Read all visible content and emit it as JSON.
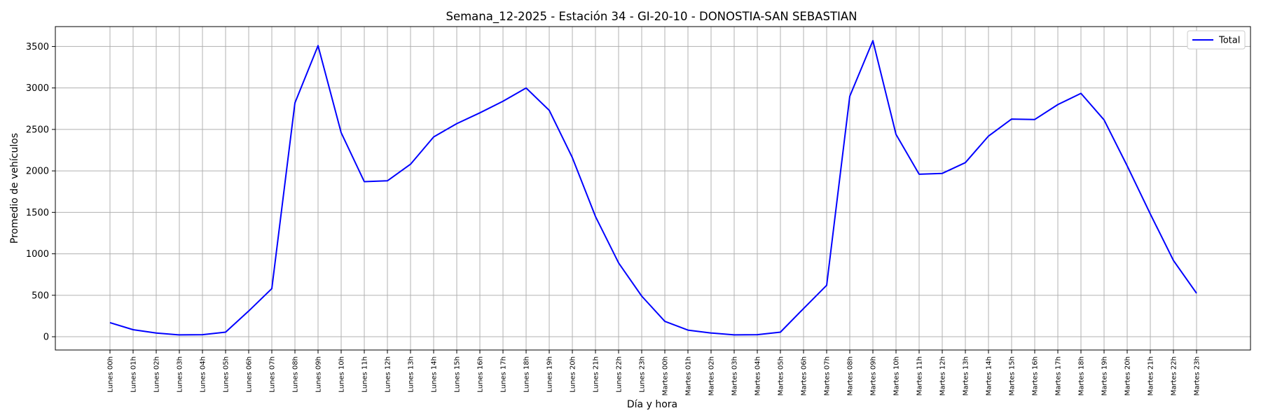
{
  "chart_data": {
    "type": "line",
    "title": "Semana_12-2025 - Estación 34 - GI-20-10  - DONOSTIA-SAN SEBASTIAN",
    "xlabel": "Día y hora",
    "ylabel": "Promedio de vehículos",
    "ylim": [
      -160,
      3740
    ],
    "yticks": [
      0,
      500,
      1000,
      1500,
      2000,
      2500,
      3000,
      3500
    ],
    "grid": true,
    "legend_position": "top-right",
    "categories": [
      "Lunes 00h",
      "Lunes 01h",
      "Lunes 02h",
      "Lunes 03h",
      "Lunes 04h",
      "Lunes 05h",
      "Lunes 06h",
      "Lunes 07h",
      "Lunes 08h",
      "Lunes 09h",
      "Lunes 10h",
      "Lunes 11h",
      "Lunes 12h",
      "Lunes 13h",
      "Lunes 14h",
      "Lunes 15h",
      "Lunes 16h",
      "Lunes 17h",
      "Lunes 18h",
      "Lunes 19h",
      "Lunes 20h",
      "Lunes 21h",
      "Lunes 22h",
      "Lunes 23h",
      "Martes 00h",
      "Martes 01h",
      "Martes 02h",
      "Martes 03h",
      "Martes 04h",
      "Martes 05h",
      "Martes 06h",
      "Martes 07h",
      "Martes 08h",
      "Martes 09h",
      "Martes 10h",
      "Martes 11h",
      "Martes 12h",
      "Martes 13h",
      "Martes 14h",
      "Martes 15h",
      "Martes 16h",
      "Martes 17h",
      "Martes 18h",
      "Martes 19h",
      "Martes 20h",
      "Martes 21h",
      "Martes 22h",
      "Martes 23h"
    ],
    "series": [
      {
        "name": "Total",
        "color": "#0000ff",
        "values": [
          170,
          85,
          45,
          22,
          25,
          55,
          310,
          580,
          2820,
          3510,
          2460,
          1870,
          1880,
          2080,
          2410,
          2570,
          2700,
          2840,
          3000,
          2730,
          2160,
          1450,
          890,
          490,
          185,
          80,
          45,
          22,
          25,
          55,
          340,
          620,
          2900,
          3570,
          2440,
          1960,
          1970,
          2100,
          2420,
          2625,
          2620,
          2800,
          2935,
          2615,
          2060,
          1480,
          920,
          525
        ]
      }
    ]
  }
}
